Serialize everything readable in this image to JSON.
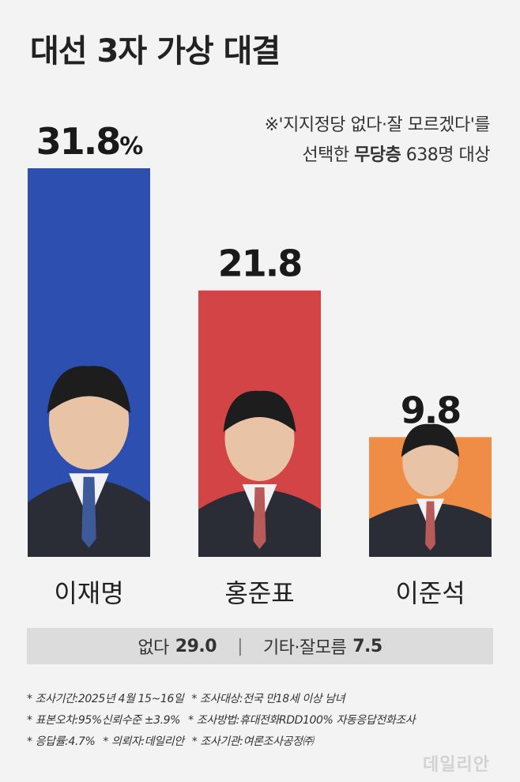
{
  "title": "대선 3자 가상 대결",
  "note": {
    "line1": "※'지지정당 없다·잘 모르겠다'를",
    "line2_pre": "선택한 ",
    "line2_bold": "무당층",
    "line2_post": " 638명 대상"
  },
  "chart_data": {
    "type": "bar",
    "categories": [
      "이재명",
      "홍준표",
      "이준석"
    ],
    "values": [
      31.8,
      21.8,
      9.8
    ],
    "value_labels": [
      "31.8",
      "21.8",
      "9.8"
    ],
    "unit": "%",
    "colors": [
      "#2c4fb0",
      "#d24445",
      "#ef8c45"
    ],
    "ylim": [
      0,
      31.8
    ]
  },
  "others": {
    "none_label": "없다",
    "none_value": "29.0",
    "etc_label": "기타·잘모름",
    "etc_value": "7.5"
  },
  "footer": {
    "line1a": "* 조사기간:2025년 4월 15~16일",
    "line1b": "* 조사대상:전국 만18세 이상 남녀",
    "line2a": "* 표본오차:95%신뢰수준 ±3.9%",
    "line2b": "* 조사방법:휴대전화RDD100% 자동응답전화조사",
    "line3a": "* 응답률:4.7%",
    "line3b": "* 의뢰자:데일리안",
    "line3c": "* 조사기관:여론조사공정㈜"
  },
  "logo": "데일리안"
}
